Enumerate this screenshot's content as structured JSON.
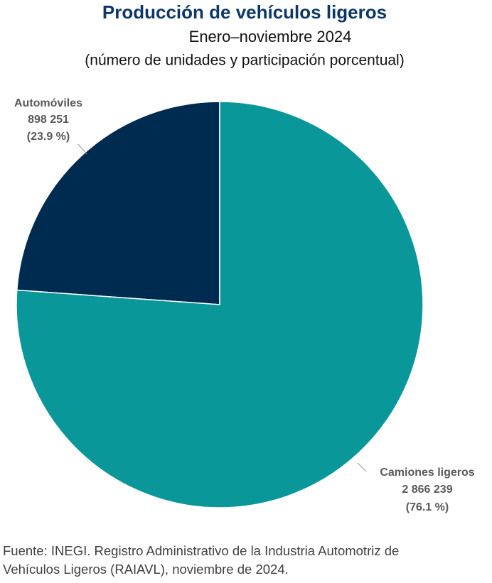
{
  "chart_data": {
    "type": "pie",
    "title": "Producción de vehículos ligeros",
    "subtitle": "Enero–noviembre 2024",
    "note": "(número de unidades y participación porcentual)",
    "categories": [
      "Automóviles",
      "Camiones ligeros"
    ],
    "values": [
      898251,
      2866239
    ],
    "value_labels": [
      "898 251",
      "2 866  239"
    ],
    "percentages": [
      {
        "value": 23.9,
        "label": "(23.9 %)"
      },
      {
        "value": 76.1,
        "label": "(76.1 %)"
      }
    ],
    "colors": [
      "#002b50",
      "#0a9799"
    ],
    "source": [
      "Fuente: INEGI. Registro Administrativo de la Industria Automotriz de",
      "Vehículos Ligeros (RAIAVL), noviembre de 2024."
    ]
  }
}
